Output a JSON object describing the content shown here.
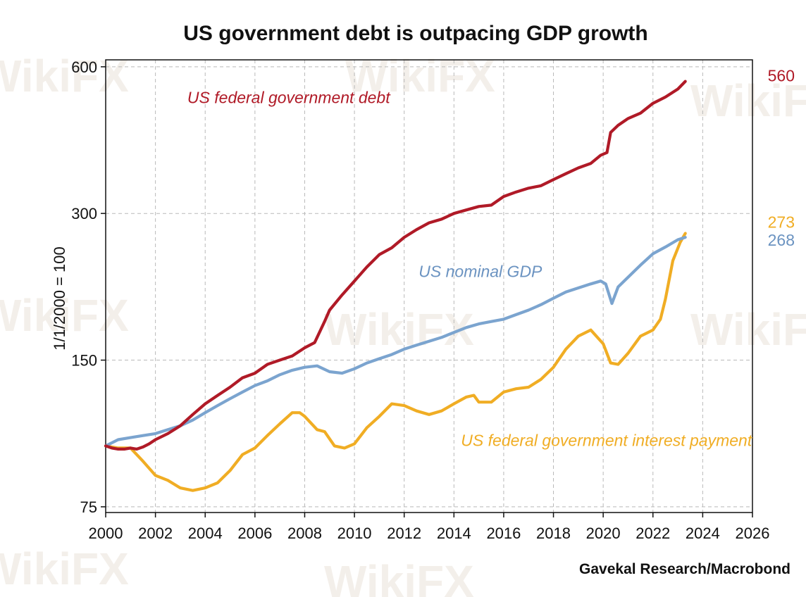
{
  "chart_data": {
    "type": "line",
    "title": "US government debt is outpacing GDP growth",
    "ylabel": "1/1/2000 = 100",
    "xlabel": "",
    "xlim": [
      2000,
      2026
    ],
    "ylim": [
      73,
      620
    ],
    "yscale": "log",
    "x_ticks": [
      "2000",
      "2002",
      "2004",
      "2006",
      "2008",
      "2010",
      "2012",
      "2014",
      "2016",
      "2018",
      "2020",
      "2022",
      "2024",
      "2026"
    ],
    "y_ticks": [
      {
        "value": 75,
        "label": "75"
      },
      {
        "value": 150,
        "label": "150"
      },
      {
        "value": 300,
        "label": "300"
      },
      {
        "value": 600,
        "label": "600"
      }
    ],
    "grid": true,
    "source": "Gavekal Research/Macrobond",
    "watermark": "WikiFX",
    "series": [
      {
        "name": "US federal government debt",
        "color": "#b01a27",
        "end_label": "560",
        "points": [
          [
            2000,
            100
          ],
          [
            2000.25,
            99
          ],
          [
            2000.5,
            98.5
          ],
          [
            2000.75,
            98.5
          ],
          [
            2001,
            99
          ],
          [
            2001.25,
            98.5
          ],
          [
            2001.5,
            99.5
          ],
          [
            2001.75,
            101
          ],
          [
            2002,
            103
          ],
          [
            2002.5,
            106
          ],
          [
            2003,
            110
          ],
          [
            2003.5,
            116
          ],
          [
            2004,
            122
          ],
          [
            2004.5,
            127
          ],
          [
            2005,
            132
          ],
          [
            2005.5,
            138
          ],
          [
            2006,
            141
          ],
          [
            2006.5,
            147
          ],
          [
            2007,
            150
          ],
          [
            2007.5,
            153
          ],
          [
            2008,
            159
          ],
          [
            2008.4,
            163
          ],
          [
            2008.8,
            180
          ],
          [
            2009,
            190
          ],
          [
            2009.5,
            204
          ],
          [
            2010,
            218
          ],
          [
            2010.5,
            233
          ],
          [
            2011,
            247
          ],
          [
            2011.5,
            255
          ],
          [
            2012,
            268
          ],
          [
            2012.5,
            278
          ],
          [
            2013,
            287
          ],
          [
            2013.5,
            292
          ],
          [
            2014,
            300
          ],
          [
            2014.5,
            305
          ],
          [
            2015,
            310
          ],
          [
            2015.5,
            312
          ],
          [
            2016,
            325
          ],
          [
            2016.5,
            332
          ],
          [
            2017,
            338
          ],
          [
            2017.5,
            342
          ],
          [
            2018,
            352
          ],
          [
            2018.5,
            362
          ],
          [
            2019,
            372
          ],
          [
            2019.5,
            380
          ],
          [
            2019.9,
            395
          ],
          [
            2020.15,
            400
          ],
          [
            2020.3,
            440
          ],
          [
            2020.6,
            455
          ],
          [
            2021,
            470
          ],
          [
            2021.5,
            482
          ],
          [
            2022,
            505
          ],
          [
            2022.5,
            520
          ],
          [
            2023,
            540
          ],
          [
            2023.3,
            560
          ]
        ]
      },
      {
        "name": "US nominal GDP",
        "color": "#7ba4cf",
        "end_label": "268",
        "points": [
          [
            2000,
            100
          ],
          [
            2000.5,
            103
          ],
          [
            2001,
            104
          ],
          [
            2001.5,
            105
          ],
          [
            2002,
            106
          ],
          [
            2002.5,
            108
          ],
          [
            2003,
            110
          ],
          [
            2003.5,
            113
          ],
          [
            2004,
            117
          ],
          [
            2004.5,
            121
          ],
          [
            2005,
            125
          ],
          [
            2005.5,
            129
          ],
          [
            2006,
            133
          ],
          [
            2006.5,
            136
          ],
          [
            2007,
            140
          ],
          [
            2007.5,
            143
          ],
          [
            2008,
            145
          ],
          [
            2008.5,
            146
          ],
          [
            2009,
            142
          ],
          [
            2009.5,
            141
          ],
          [
            2010,
            144
          ],
          [
            2010.5,
            148
          ],
          [
            2011,
            151
          ],
          [
            2011.5,
            154
          ],
          [
            2012,
            158
          ],
          [
            2012.5,
            161
          ],
          [
            2013,
            164
          ],
          [
            2013.5,
            167
          ],
          [
            2014,
            171
          ],
          [
            2014.5,
            175
          ],
          [
            2015,
            178
          ],
          [
            2015.5,
            180
          ],
          [
            2016,
            182
          ],
          [
            2016.5,
            186
          ],
          [
            2017,
            190
          ],
          [
            2017.5,
            195
          ],
          [
            2018,
            201
          ],
          [
            2018.5,
            207
          ],
          [
            2019,
            211
          ],
          [
            2019.5,
            215
          ],
          [
            2019.9,
            218
          ],
          [
            2020.1,
            215
          ],
          [
            2020.35,
            196
          ],
          [
            2020.6,
            212
          ],
          [
            2021,
            222
          ],
          [
            2021.5,
            235
          ],
          [
            2022,
            248
          ],
          [
            2022.5,
            256
          ],
          [
            2023,
            265
          ],
          [
            2023.3,
            268
          ]
        ]
      },
      {
        "name": "US federal government interest payment",
        "color": "#f0ad24",
        "end_label": "273",
        "points": [
          [
            2000,
            100
          ],
          [
            2000.5,
            99
          ],
          [
            2001,
            99
          ],
          [
            2001.5,
            93
          ],
          [
            2002,
            87
          ],
          [
            2002.5,
            85
          ],
          [
            2003,
            82
          ],
          [
            2003.5,
            81
          ],
          [
            2004,
            82
          ],
          [
            2004.5,
            84
          ],
          [
            2005,
            89
          ],
          [
            2005.5,
            96
          ],
          [
            2006,
            99
          ],
          [
            2006.5,
            105
          ],
          [
            2007,
            111
          ],
          [
            2007.5,
            117
          ],
          [
            2007.8,
            117
          ],
          [
            2008,
            115
          ],
          [
            2008.5,
            108
          ],
          [
            2008.8,
            107
          ],
          [
            2009.2,
            100
          ],
          [
            2009.6,
            99
          ],
          [
            2010,
            101
          ],
          [
            2010.5,
            109
          ],
          [
            2011,
            115
          ],
          [
            2011.5,
            122
          ],
          [
            2012,
            121
          ],
          [
            2012.5,
            118
          ],
          [
            2013,
            116
          ],
          [
            2013.5,
            118
          ],
          [
            2014,
            122
          ],
          [
            2014.5,
            126
          ],
          [
            2014.8,
            127
          ],
          [
            2015,
            123
          ],
          [
            2015.5,
            123
          ],
          [
            2016,
            129
          ],
          [
            2016.5,
            131
          ],
          [
            2017,
            132
          ],
          [
            2017.5,
            137
          ],
          [
            2018,
            145
          ],
          [
            2018.5,
            158
          ],
          [
            2019,
            168
          ],
          [
            2019.5,
            173
          ],
          [
            2020,
            162
          ],
          [
            2020.3,
            148
          ],
          [
            2020.6,
            147
          ],
          [
            2021,
            155
          ],
          [
            2021.5,
            168
          ],
          [
            2022,
            173
          ],
          [
            2022.3,
            182
          ],
          [
            2022.5,
            200
          ],
          [
            2022.8,
            240
          ],
          [
            2023.1,
            262
          ],
          [
            2023.3,
            273
          ]
        ]
      }
    ],
    "annotations": [
      {
        "text": "US federal government debt",
        "series": 0,
        "at": [
          2003,
          505
        ],
        "color": "#b01a27"
      },
      {
        "text": "US nominal GDP",
        "series": 1,
        "at": [
          2012.3,
          222
        ],
        "color": "#6b93c1"
      },
      {
        "text": "US federal government interest payment",
        "series": 2,
        "at": [
          2014,
          100
        ],
        "color": "#f0ad24"
      }
    ]
  }
}
